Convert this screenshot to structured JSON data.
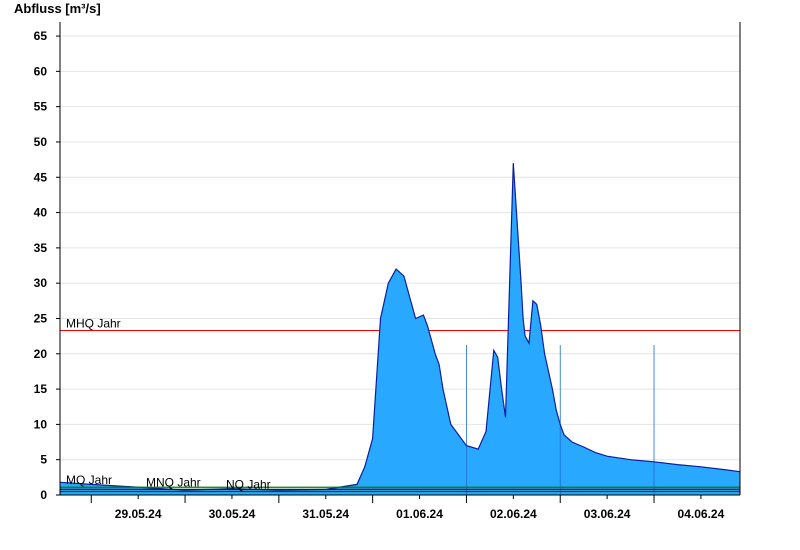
{
  "chart_data": {
    "type": "area",
    "ylabel": "Abfluss [m³/s]",
    "ylim": [
      0,
      66
    ],
    "yticks": [
      0,
      5,
      10,
      15,
      20,
      25,
      30,
      35,
      40,
      45,
      50,
      55,
      60,
      65
    ],
    "xlim": [
      "2024-05-28T16:00",
      "2024-06-04T22:00"
    ],
    "xticks": [
      {
        "t": "2024-05-29T12:00",
        "label": "29.05.24"
      },
      {
        "t": "2024-05-30T12:00",
        "label": "30.05.24"
      },
      {
        "t": "2024-05-31T12:00",
        "label": "31.05.24"
      },
      {
        "t": "2024-06-01T12:00",
        "label": "01.06.24"
      },
      {
        "t": "2024-06-02T12:00",
        "label": "02.06.24"
      },
      {
        "t": "2024-06-03T12:00",
        "label": "03.06.24"
      },
      {
        "t": "2024-06-04T12:00",
        "label": "04.06.24"
      }
    ],
    "grid": true,
    "colors": {
      "fill": "#29a8ff",
      "line": "#0b1f9e",
      "mhq": "#ff0000",
      "mq": "#008000",
      "mnq": "#003300",
      "nq": "#005000"
    },
    "reference_lines": [
      {
        "label": "MHQ Jahr",
        "value": 23.3
      },
      {
        "label": "MQ Jahr",
        "value": 1.1
      },
      {
        "label": "MNQ Jahr",
        "value": 0.8
      },
      {
        "label": "NQ Jahr",
        "value": 0.5
      }
    ],
    "series": [
      {
        "x": [
          "2024-05-28T16:00",
          "2024-05-29T00:00",
          "2024-05-29T12:00",
          "2024-05-30T00:00",
          "2024-05-30T12:00",
          "2024-05-31T00:00",
          "2024-05-31T12:00",
          "2024-05-31T20:00",
          "2024-05-31T22:00",
          "2024-06-01T00:00",
          "2024-06-01T02:00",
          "2024-06-01T04:00",
          "2024-06-01T06:00",
          "2024-06-01T08:00",
          "2024-06-01T09:00",
          "2024-06-01T10:00",
          "2024-06-01T11:00",
          "2024-06-01T13:00",
          "2024-06-01T14:00",
          "2024-06-01T15:00",
          "2024-06-01T16:00",
          "2024-06-01T17:00",
          "2024-06-01T18:00",
          "2024-06-01T20:00",
          "2024-06-02T00:00",
          "2024-06-02T03:00",
          "2024-06-02T05:00",
          "2024-06-02T07:00",
          "2024-06-02T08:00",
          "2024-06-02T09:00",
          "2024-06-02T10:00",
          "2024-06-02T12:00",
          "2024-06-02T14:00",
          "2024-06-02T14:30",
          "2024-06-02T15:00",
          "2024-06-02T16:00",
          "2024-06-02T17:00",
          "2024-06-02T18:00",
          "2024-06-02T19:00",
          "2024-06-02T20:00",
          "2024-06-02T22:00",
          "2024-06-02T23:00",
          "2024-06-03T00:00",
          "2024-06-03T01:00",
          "2024-06-03T03:00",
          "2024-06-03T06:00",
          "2024-06-03T09:00",
          "2024-06-03T12:00",
          "2024-06-03T18:00",
          "2024-06-04T00:00",
          "2024-06-04T06:00",
          "2024-06-04T12:00",
          "2024-06-04T18:00",
          "2024-06-04T22:00"
        ],
        "values": [
          1.8,
          1.5,
          1.1,
          0.7,
          0.9,
          0.7,
          0.8,
          1.5,
          4.0,
          8.0,
          25.0,
          30.0,
          32.0,
          31.0,
          29.0,
          27.0,
          25.0,
          25.5,
          24.0,
          22.0,
          20.0,
          18.5,
          15.0,
          10.0,
          7.0,
          6.5,
          9.0,
          20.5,
          19.5,
          15.0,
          11.0,
          47.0,
          30.0,
          25.0,
          22.5,
          21.5,
          27.5,
          27.0,
          24.0,
          20.0,
          15.0,
          12.0,
          10.0,
          8.5,
          7.5,
          6.8,
          6.0,
          5.5,
          5.0,
          4.7,
          4.3,
          4.0,
          3.6,
          3.3
        ]
      }
    ]
  }
}
